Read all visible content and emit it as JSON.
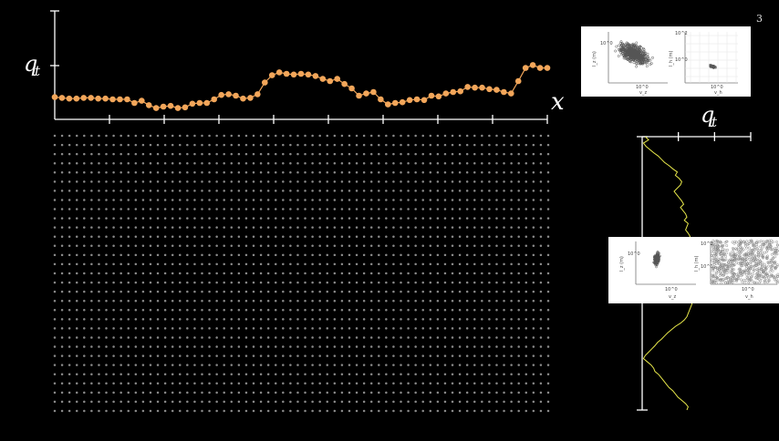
{
  "slide_number": "3",
  "colors": {
    "background": "#000000",
    "axis": "#ffffff",
    "series_main": "#f2a65a",
    "series_vertical": "#e8e84a",
    "grid_dots": "#8a8a8a",
    "inset_bg": "#ffffff",
    "inset_scatter": "#555555"
  },
  "chart_data": [
    {
      "type": "line",
      "ylabel": "q_t",
      "xlabel": "x",
      "x_tick_count": 9,
      "markers": true,
      "series": [
        {
          "values": [
            0.18,
            0.17,
            0.16,
            0.16,
            0.17,
            0.17,
            0.16,
            0.16,
            0.15,
            0.15,
            0.15,
            0.1,
            0.13,
            0.07,
            0.03,
            0.05,
            0.06,
            0.03,
            0.04,
            0.09,
            0.1,
            0.1,
            0.15,
            0.21,
            0.22,
            0.2,
            0.16,
            0.17,
            0.22,
            0.38,
            0.48,
            0.52,
            0.5,
            0.49,
            0.5,
            0.49,
            0.47,
            0.43,
            0.4,
            0.43,
            0.36,
            0.3,
            0.2,
            0.23,
            0.25,
            0.15,
            0.08,
            0.1,
            0.11,
            0.14,
            0.15,
            0.14,
            0.2,
            0.19,
            0.23,
            0.25,
            0.26,
            0.32,
            0.31,
            0.31,
            0.29,
            0.28,
            0.25,
            0.23,
            0.4,
            0.58,
            0.62,
            0.58,
            0.58
          ]
        }
      ]
    },
    {
      "type": "line",
      "orientation": "vertical",
      "xlabel": "q_t",
      "x_tick_count": 3,
      "series": [
        {
          "values": [
            0.05,
            0.1,
            0.02,
            0.06,
            0.12,
            0.18,
            0.25,
            0.3,
            0.35,
            0.42,
            0.48,
            0.55,
            0.52,
            0.58,
            0.62,
            0.6,
            0.55,
            0.5,
            0.54,
            0.58,
            0.62,
            0.65,
            0.6,
            0.64,
            0.68,
            0.7,
            0.66,
            0.72,
            0.7,
            0.68,
            0.72,
            0.75,
            0.72,
            0.7,
            0.68,
            0.62,
            0.6,
            0.56,
            0.52,
            0.48,
            0.5,
            0.54,
            0.58,
            0.6,
            0.57,
            0.55,
            0.58,
            0.62,
            0.66,
            0.7,
            0.72,
            0.75,
            0.78,
            0.76,
            0.74,
            0.72,
            0.7,
            0.66,
            0.6,
            0.52,
            0.46,
            0.4,
            0.35,
            0.3,
            0.24,
            0.2,
            0.15,
            0.1,
            0.05,
            0.02,
            0.08,
            0.14,
            0.18,
            0.2,
            0.26,
            0.3,
            0.34,
            0.38,
            0.42,
            0.48,
            0.52,
            0.56,
            0.62,
            0.68,
            0.72,
            0.7
          ]
        }
      ]
    }
  ],
  "point_grid": {
    "columns": 68,
    "rows": 31
  },
  "insets": {
    "top": {
      "left_panel": {
        "ylabel": "l_z (m)",
        "ytick": "10^0",
        "xtick": "10^0",
        "xlabel": "v_z"
      },
      "right_panel": {
        "ylabel": "l_h (m)",
        "ytick_top": "10^2",
        "ytick": "10^0",
        "xtick": "10^0",
        "xlabel": "v_h"
      }
    },
    "middle": {
      "left_panel": {
        "ylabel": "l_z (m)",
        "ytick": "10^0",
        "xtick": "10^0",
        "xlabel": "v_z"
      },
      "right_panel": {
        "ylabel": "l_h (m)",
        "ytick_top": "10^2",
        "ytick": "10^0",
        "xtick": "10^0",
        "xlabel": "v_h"
      }
    }
  }
}
